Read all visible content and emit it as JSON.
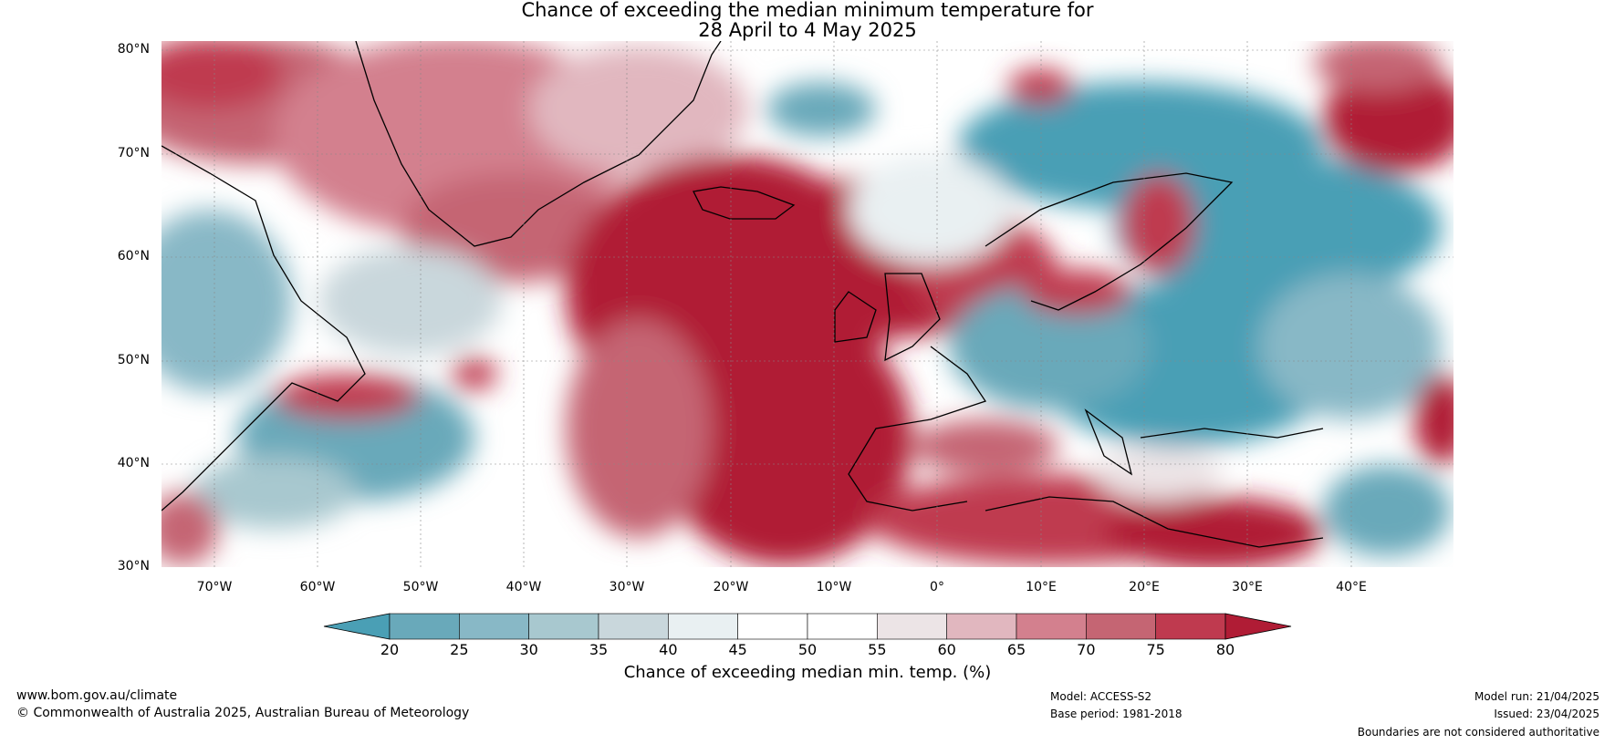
{
  "title_line1": "Chance of exceeding the median minimum temperature for",
  "title_line2": "28 April to 4 May 2025",
  "lat_labels": [
    "80°N",
    "70°N",
    "60°N",
    "50°N",
    "40°N",
    "30°N"
  ],
  "lon_labels": [
    "70°W",
    "60°W",
    "50°W",
    "40°W",
    "30°W",
    "20°W",
    "10°W",
    "0°",
    "10°E",
    "20°E",
    "30°E",
    "40°E"
  ],
  "colorbar": {
    "ticks": [
      "20",
      "25",
      "30",
      "35",
      "40",
      "45",
      "50",
      "55",
      "60",
      "65",
      "70",
      "75",
      "80"
    ],
    "label": "Chance of exceeding median min. temp. (%)",
    "colors": [
      "#4a9fb5",
      "#69a9ba",
      "#88b8c6",
      "#a8c8cf",
      "#c9d7dc",
      "#e9f0f2",
      "#ffffff",
      "#ffffff",
      "#ece4e6",
      "#e1b7bf",
      "#d3808e",
      "#c56573",
      "#bf3a4f",
      "#b01c35"
    ]
  },
  "footer": {
    "website": "www.bom.gov.au/climate",
    "copyright": "© Commonwealth of Australia 2025, Australian Bureau of Meteorology",
    "model": "Model: ACCESS-S2",
    "base_period": "Base period: 1981-2018",
    "model_run": "Model run: 21/04/2025",
    "issued": "Issued: 23/04/2025",
    "disclaimer": "Boundaries are not considered authoritative"
  }
}
